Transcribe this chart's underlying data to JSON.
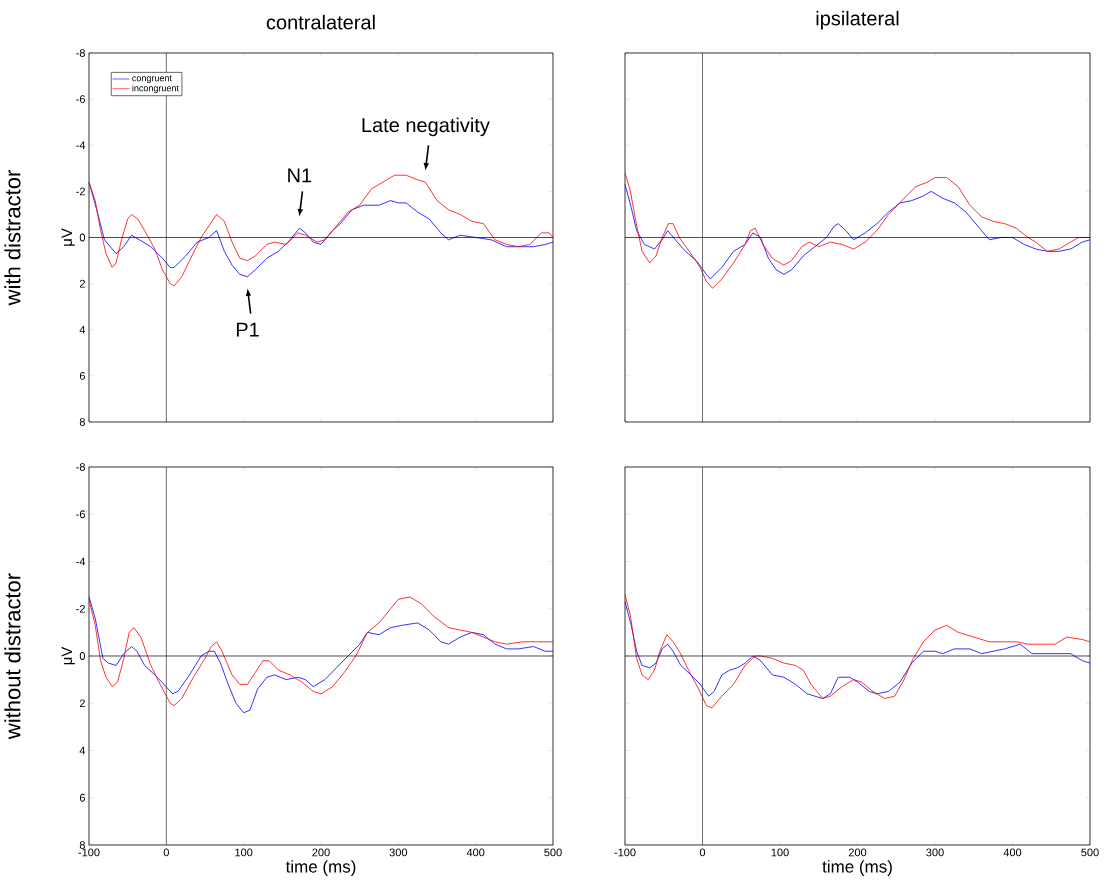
{
  "chart_data": [
    {
      "type": "line",
      "title": "contralateral",
      "ylabel": "μV",
      "legend": "top left",
      "tick_labels": "y",
      "xlim": [
        -100,
        500
      ],
      "ylim": [
        8,
        -8
      ],
      "xticks": [
        -100,
        0,
        100,
        200,
        300,
        400,
        500
      ],
      "yticks": [
        -8,
        -6,
        -4,
        -2,
        0,
        2,
        4,
        6,
        8
      ],
      "ref_lines": [
        {
          "axis": "x",
          "value": 0
        },
        {
          "axis": "y",
          "value": 0
        }
      ],
      "annotations": [
        "with distractor",
        {
          "text": "P1",
          "x": 105,
          "y": 1.7
        },
        {
          "text": "N1",
          "x": 172,
          "y": -0.4
        },
        {
          "text": "Late negativity",
          "x": 335,
          "y": -2.4
        }
      ],
      "series": [
        {
          "name": "congruent",
          "color": "#0000ff",
          "x": [
            -100,
            -90,
            -80,
            -70,
            -65,
            -55,
            -45,
            -35,
            -20,
            -5,
            5,
            10,
            25,
            40,
            55,
            65,
            75,
            85,
            95,
            105,
            115,
            130,
            145,
            160,
            172,
            180,
            190,
            200,
            215,
            225,
            240,
            255,
            275,
            290,
            300,
            310,
            325,
            340,
            355,
            365,
            380,
            400,
            420,
            440,
            460,
            475,
            490,
            500
          ],
          "values": [
            -2.4,
            -1.2,
            0.1,
            0.5,
            0.7,
            0.4,
            -0.1,
            0.1,
            0.4,
            0.9,
            1.3,
            1.3,
            0.8,
            0.2,
            0,
            -0.3,
            0.6,
            1.2,
            1.6,
            1.7,
            1.4,
            0.9,
            0.6,
            0.1,
            -0.4,
            -0.2,
            0.2,
            0.3,
            -0.3,
            -0.6,
            -1.2,
            -1.4,
            -1.4,
            -1.6,
            -1.5,
            -1.5,
            -1.1,
            -0.8,
            -0.2,
            0.1,
            -0.1,
            0,
            0.1,
            0.4,
            0.4,
            0.4,
            0.3,
            0.2
          ]
        },
        {
          "name": "incongruent",
          "color": "#ff0000",
          "x": [
            -100,
            -92,
            -85,
            -78,
            -70,
            -65,
            -58,
            -50,
            -45,
            -37,
            -28,
            -15,
            -5,
            5,
            10,
            20,
            30,
            45,
            55,
            65,
            75,
            85,
            95,
            105,
            115,
            130,
            140,
            155,
            170,
            180,
            195,
            205,
            220,
            235,
            250,
            265,
            280,
            295,
            310,
            325,
            335,
            350,
            365,
            380,
            395,
            410,
            425,
            440,
            455,
            470,
            485,
            495,
            500
          ],
          "values": [
            -2.4,
            -1.6,
            -0.3,
            0.7,
            1.3,
            1.1,
            0.1,
            -0.8,
            -1.0,
            -0.8,
            -0.3,
            0.5,
            1.4,
            2.0,
            2.1,
            1.7,
            1.0,
            0,
            -0.5,
            -1.0,
            -0.7,
            0.2,
            0.9,
            1.0,
            0.8,
            0.3,
            0.2,
            0.3,
            -0.2,
            -0.1,
            0.2,
            0.1,
            -0.5,
            -1.1,
            -1.4,
            -2.1,
            -2.4,
            -2.7,
            -2.7,
            -2.5,
            -2.4,
            -1.6,
            -1.2,
            -1.0,
            -0.7,
            -0.6,
            0.1,
            0.3,
            0.4,
            0.3,
            -0.2,
            -0.2,
            0
          ]
        }
      ]
    },
    {
      "type": "line",
      "title": "ipsilateral",
      "tick_labels": false,
      "xlim": [
        -100,
        500
      ],
      "ylim": [
        8,
        -8
      ],
      "xticks": [
        -100,
        0,
        100,
        200,
        300,
        400,
        500
      ],
      "yticks": [
        -8,
        -6,
        -4,
        -2,
        0,
        2,
        4,
        6,
        8
      ],
      "ref_lines": [
        {
          "axis": "x",
          "value": 0
        },
        {
          "axis": "y",
          "value": 0
        }
      ],
      "series": [
        {
          "color": "#0000ff",
          "x": [
            -100,
            -92,
            -85,
            -75,
            -62,
            -52,
            -45,
            -35,
            -22,
            -8,
            5,
            10,
            25,
            40,
            55,
            65,
            75,
            85,
            95,
            105,
            115,
            130,
            145,
            160,
            170,
            175,
            185,
            195,
            210,
            225,
            240,
            255,
            270,
            285,
            295,
            310,
            325,
            340,
            355,
            370,
            385,
            400,
            415,
            430,
            445,
            460,
            475,
            490,
            500
          ],
          "values": [
            -2.3,
            -1.3,
            -0.3,
            0.3,
            0.5,
            0.1,
            -0.3,
            0.1,
            0.6,
            1.0,
            1.6,
            1.8,
            1.3,
            0.6,
            0.3,
            -0.2,
            0,
            0.9,
            1.4,
            1.6,
            1.4,
            0.8,
            0.4,
            0,
            -0.5,
            -0.6,
            -0.3,
            0.1,
            -0.2,
            -0.6,
            -1.1,
            -1.5,
            -1.6,
            -1.8,
            -2.0,
            -1.7,
            -1.5,
            -1.1,
            -0.5,
            0.1,
            0,
            0,
            0.3,
            0.5,
            0.6,
            0.6,
            0.5,
            0.2,
            0.1
          ]
        },
        {
          "color": "#ff0000",
          "x": [
            -100,
            -93,
            -86,
            -78,
            -68,
            -60,
            -52,
            -44,
            -38,
            -30,
            -15,
            -3,
            5,
            13,
            25,
            40,
            55,
            62,
            68,
            78,
            90,
            105,
            115,
            128,
            138,
            150,
            165,
            180,
            195,
            210,
            225,
            240,
            260,
            275,
            290,
            300,
            315,
            330,
            345,
            360,
            375,
            390,
            405,
            420,
            430,
            445,
            460,
            475,
            485,
            500
          ],
          "values": [
            -2.8,
            -2.0,
            -0.7,
            0.6,
            1.1,
            0.8,
            0,
            -0.6,
            -0.6,
            0,
            0.7,
            1.3,
            1.9,
            2.2,
            1.8,
            1.1,
            0.3,
            -0.3,
            -0.4,
            0.3,
            0.9,
            1.2,
            1.0,
            0.4,
            0.2,
            0.4,
            0.2,
            0.3,
            0.5,
            0.2,
            -0.3,
            -1.0,
            -1.7,
            -2.2,
            -2.4,
            -2.6,
            -2.6,
            -2.2,
            -1.4,
            -0.9,
            -0.7,
            -0.6,
            -0.4,
            0,
            0.2,
            0.6,
            0.5,
            0.2,
            0,
            0
          ]
        }
      ]
    },
    {
      "type": "line",
      "xlabel": "time (ms)",
      "ylabel": "μV",
      "xlim": [
        -100,
        500
      ],
      "ylim": [
        8,
        -8
      ],
      "xticks": [
        -100,
        0,
        100,
        200,
        300,
        400,
        500
      ],
      "yticks": [
        -8,
        -6,
        -4,
        -2,
        0,
        2,
        4,
        6,
        8
      ],
      "ref_lines": [
        {
          "axis": "x",
          "value": 0
        },
        {
          "axis": "y",
          "value": 0
        }
      ],
      "annotations": [
        "without distractor"
      ],
      "series": [
        {
          "color": "#0000ff",
          "x": [
            -100,
            -92,
            -82,
            -75,
            -65,
            -55,
            -45,
            -38,
            -28,
            -15,
            -3,
            8,
            15,
            30,
            45,
            55,
            62,
            70,
            80,
            90,
            100,
            108,
            118,
            130,
            140,
            155,
            170,
            180,
            190,
            205,
            220,
            235,
            250,
            260,
            275,
            290,
            305,
            325,
            340,
            355,
            365,
            380,
            395,
            410,
            425,
            440,
            455,
            475,
            490,
            500
          ],
          "values": [
            -2.5,
            -1.6,
            0.1,
            0.3,
            0.4,
            -0.1,
            -0.4,
            -0.2,
            0.4,
            0.8,
            1.2,
            1.6,
            1.5,
            0.8,
            0,
            -0.2,
            -0.2,
            0.3,
            1.2,
            2.0,
            2.4,
            2.3,
            1.4,
            0.9,
            0.8,
            1.0,
            0.9,
            1.0,
            1.3,
            1.0,
            0.5,
            0,
            -0.5,
            -1.0,
            -0.9,
            -1.2,
            -1.3,
            -1.4,
            -1.1,
            -0.6,
            -0.5,
            -0.8,
            -1.0,
            -0.9,
            -0.5,
            -0.3,
            -0.3,
            -0.4,
            -0.2,
            -0.2
          ]
        },
        {
          "color": "#ff0000",
          "x": [
            -100,
            -92,
            -85,
            -78,
            -70,
            -63,
            -55,
            -48,
            -42,
            -33,
            -20,
            -8,
            5,
            10,
            20,
            35,
            50,
            58,
            65,
            72,
            85,
            95,
            105,
            115,
            125,
            133,
            145,
            160,
            175,
            190,
            200,
            215,
            230,
            245,
            260,
            275,
            290,
            300,
            315,
            330,
            345,
            365,
            380,
            395,
            410,
            425,
            440,
            460,
            480,
            500
          ],
          "values": [
            -2.4,
            -1.3,
            0.2,
            0.9,
            1.3,
            1.1,
            0.1,
            -1.0,
            -1.2,
            -0.8,
            0.4,
            1.2,
            2.0,
            2.1,
            1.8,
            0.9,
            0.1,
            -0.4,
            -0.6,
            -0.2,
            0.8,
            1.2,
            1.2,
            0.7,
            0.2,
            0.2,
            0.6,
            0.8,
            1.1,
            1.5,
            1.6,
            1.3,
            0.7,
            0,
            -1.0,
            -1.4,
            -2.0,
            -2.4,
            -2.5,
            -2.2,
            -1.7,
            -1.2,
            -1.1,
            -1.0,
            -0.8,
            -0.6,
            -0.5,
            -0.6,
            -0.6,
            -0.6
          ]
        }
      ]
    },
    {
      "type": "line",
      "xlabel": "time (ms)",
      "tick_labels": "x",
      "xlim": [
        -100,
        500
      ],
      "ylim": [
        8,
        -8
      ],
      "xticks": [
        -100,
        0,
        100,
        200,
        300,
        400,
        500
      ],
      "yticks": [
        -8,
        -6,
        -4,
        -2,
        0,
        2,
        4,
        6,
        8
      ],
      "ref_lines": [
        {
          "axis": "x",
          "value": 0
        },
        {
          "axis": "y",
          "value": 0
        }
      ],
      "series": [
        {
          "color": "#0000ff",
          "x": [
            -100,
            -92,
            -85,
            -78,
            -68,
            -60,
            -52,
            -45,
            -38,
            -28,
            -15,
            -3,
            8,
            15,
            25,
            35,
            45,
            55,
            65,
            75,
            90,
            105,
            120,
            135,
            155,
            165,
            175,
            190,
            200,
            215,
            225,
            240,
            255,
            270,
            285,
            300,
            310,
            325,
            345,
            360,
            375,
            390,
            410,
            425,
            440,
            460,
            475,
            490,
            500
          ],
          "values": [
            -2.3,
            -1.3,
            -0.2,
            0.4,
            0.5,
            0.3,
            -0.3,
            -0.5,
            -0.2,
            0.4,
            0.8,
            1.2,
            1.7,
            1.5,
            0.8,
            0.6,
            0.5,
            0.3,
            0,
            0.2,
            0.8,
            0.9,
            1.2,
            1.6,
            1.8,
            1.6,
            0.9,
            0.9,
            1.1,
            1.5,
            1.6,
            1.5,
            1.1,
            0.3,
            -0.2,
            -0.2,
            -0.1,
            -0.3,
            -0.3,
            -0.1,
            -0.2,
            -0.3,
            -0.5,
            -0.1,
            -0.1,
            -0.1,
            -0.1,
            0.2,
            0.3
          ]
        },
        {
          "color": "#ff0000",
          "x": [
            -100,
            -93,
            -85,
            -78,
            -70,
            -62,
            -55,
            -46,
            -38,
            -30,
            -18,
            -5,
            5,
            12,
            25,
            40,
            55,
            68,
            75,
            90,
            105,
            120,
            130,
            140,
            155,
            165,
            180,
            195,
            205,
            220,
            235,
            248,
            260,
            272,
            285,
            300,
            315,
            330,
            350,
            370,
            390,
            405,
            420,
            440,
            455,
            470,
            490,
            500
          ],
          "values": [
            -2.6,
            -1.7,
            0.1,
            0.8,
            1.0,
            0.6,
            -0.2,
            -0.9,
            -0.6,
            -0.2,
            0.6,
            1.4,
            2.1,
            2.2,
            1.7,
            1.2,
            0.4,
            0,
            0,
            0.1,
            0.3,
            0.4,
            0.6,
            1.2,
            1.8,
            1.7,
            1.3,
            1.0,
            1.1,
            1.5,
            1.8,
            1.7,
            1.0,
            0.1,
            -0.6,
            -1.1,
            -1.3,
            -1.0,
            -0.8,
            -0.6,
            -0.6,
            -0.6,
            -0.5,
            -0.5,
            -0.5,
            -0.8,
            -0.7,
            -0.6
          ]
        }
      ]
    }
  ]
}
